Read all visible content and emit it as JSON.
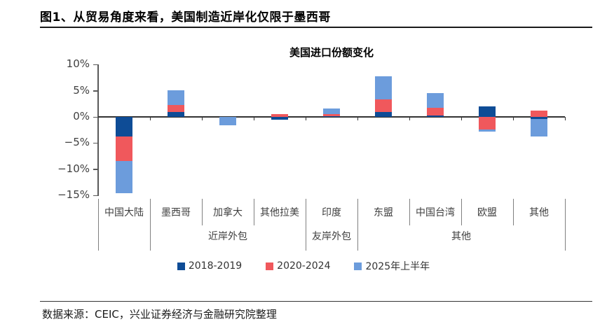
{
  "page": {
    "title": "图1、从贸易角度来看，美国制造近岸化仅限于墨西哥",
    "source_note": "数据来源：CEIC，兴业证券经济与金融研究院整理"
  },
  "chart_data": {
    "type": "bar",
    "stacked": true,
    "title": "美国进口份额变化",
    "ylabel": "",
    "xlabel": "",
    "unit": "%",
    "categories": [
      "中国大陆",
      "墨西哥",
      "加拿大",
      "其他拉美",
      "印度",
      "东盟",
      "中国台湾",
      "欧盟",
      "其他"
    ],
    "series": [
      {
        "name": "2018-2019",
        "color": "#0E4C96",
        "values": [
          -3.8,
          1.0,
          0,
          -0.6,
          0.1,
          0.9,
          0.3,
          2.0,
          -0.4
        ]
      },
      {
        "name": "2020-2024",
        "color": "#F0585C",
        "values": [
          -4.6,
          1.3,
          0,
          0.5,
          0.4,
          2.4,
          1.4,
          -2.4,
          1.2
        ]
      },
      {
        "name": "2025年上半年",
        "color": "#6C9CDC",
        "values": [
          -6.2,
          2.8,
          -1.6,
          0,
          1.1,
          4.4,
          2.8,
          -0.4,
          -3.3
        ]
      }
    ],
    "groups": [
      {
        "label": "",
        "start": 0,
        "end": 1
      },
      {
        "label": "近岸外包",
        "start": 1,
        "end": 4
      },
      {
        "label": "友岸外包",
        "start": 4,
        "end": 5
      },
      {
        "label": "其他",
        "start": 5,
        "end": 9
      }
    ],
    "y_axis": {
      "min": -15,
      "max": 10,
      "ticks": [
        {
          "value": 10,
          "label": "10%"
        },
        {
          "value": 5,
          "label": "5%"
        },
        {
          "value": 0,
          "label": "0%"
        },
        {
          "value": -5,
          "label": "−5%"
        },
        {
          "value": -10,
          "label": "−10%"
        },
        {
          "value": -15,
          "label": "−15%"
        }
      ]
    },
    "legend_position": "bottom",
    "grid": false
  }
}
